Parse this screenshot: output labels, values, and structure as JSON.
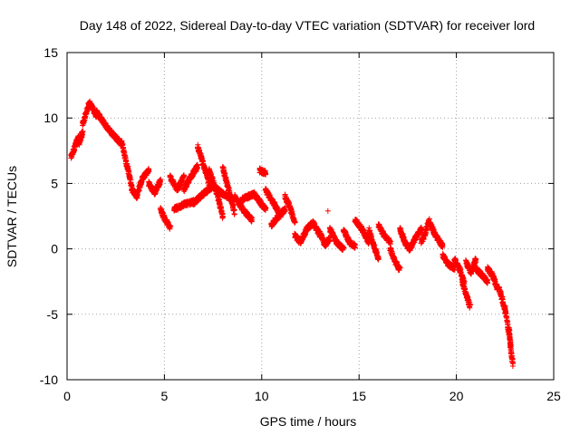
{
  "chart_data": {
    "type": "scatter",
    "title": "Day 148 of 2022, Sidereal Day-to-day VTEC variation (SDTVAR) for receiver lord",
    "xlabel": "GPS time / hours",
    "ylabel": "SDTVAR / TECUs",
    "xlim": [
      0,
      25
    ],
    "ylim": [
      -10,
      15
    ],
    "xticks": [
      0,
      5,
      10,
      15,
      20,
      25
    ],
    "yticks": [
      -10,
      -5,
      0,
      5,
      10,
      15
    ],
    "grid": true,
    "marker": "+",
    "colors": {
      "series": "#ff0000",
      "axis": "#000000",
      "grid": "#a0a0a0"
    },
    "series": [
      {
        "name": "SDTVAR",
        "segments": [
          {
            "x0": 0.2,
            "x1": 0.6,
            "y": [
              7.0,
              8.6
            ]
          },
          {
            "x0": 0.6,
            "x1": 0.8,
            "y": [
              8.0,
              8.9
            ]
          },
          {
            "x0": 0.8,
            "x1": 1.5,
            "y": [
              9.5,
              11.2,
              10.2
            ]
          },
          {
            "x0": 1.5,
            "x1": 2.1,
            "y": [
              10.5,
              9.8,
              9.2
            ]
          },
          {
            "x0": 2.1,
            "x1": 2.8,
            "y": [
              9.2,
              8.0
            ]
          },
          {
            "x0": 2.8,
            "x1": 3.1,
            "y": [
              8.2,
              6.2
            ]
          },
          {
            "x0": 3.1,
            "x1": 3.6,
            "y": [
              6.3,
              4.5,
              4.0
            ]
          },
          {
            "x0": 3.6,
            "x1": 4.2,
            "y": [
              4.2,
              5.5,
              6.0
            ]
          },
          {
            "x0": 4.2,
            "x1": 4.8,
            "y": [
              5.0,
              4.3,
              5.2
            ]
          },
          {
            "x0": 4.8,
            "x1": 5.3,
            "y": [
              3.0,
              2.2,
              1.6
            ]
          },
          {
            "x0": 5.3,
            "x1": 6.0,
            "y": [
              5.5,
              4.5,
              5.5
            ]
          },
          {
            "x0": 6.0,
            "x1": 6.7,
            "y": [
              4.5,
              5.5,
              6.3
            ]
          },
          {
            "x0": 5.5,
            "x1": 6.5,
            "y": [
              3.0,
              3.4,
              3.6
            ]
          },
          {
            "x0": 6.7,
            "x1": 7.3,
            "y": [
              7.8,
              6.5,
              5.0
            ]
          },
          {
            "x0": 6.5,
            "x1": 7.5,
            "y": [
              3.5,
              4.2,
              4.8
            ]
          },
          {
            "x0": 7.3,
            "x1": 8.0,
            "y": [
              6.0,
              4.5,
              2.5
            ]
          },
          {
            "x0": 8.0,
            "x1": 8.6,
            "y": [
              6.2,
              4.5,
              2.8
            ]
          },
          {
            "x0": 7.5,
            "x1": 8.5,
            "y": [
              4.8,
              4.2,
              3.8
            ]
          },
          {
            "x0": 8.6,
            "x1": 9.5,
            "y": [
              4.0,
              3.0,
              2.2
            ]
          },
          {
            "x0": 9.0,
            "x1": 10.2,
            "y": [
              3.8,
              4.2,
              3.0
            ]
          },
          {
            "x0": 9.9,
            "x1": 10.2,
            "y": [
              6.0,
              5.8
            ]
          },
          {
            "x0": 10.2,
            "x1": 11.0,
            "y": [
              4.5,
              3.5,
              2.5
            ]
          },
          {
            "x0": 10.5,
            "x1": 11.2,
            "y": [
              1.8,
              2.5,
              3.0
            ]
          },
          {
            "x0": 11.2,
            "x1": 11.7,
            "y": [
              4.0,
              3.2,
              2.0
            ]
          },
          {
            "x0": 11.7,
            "x1": 12.3,
            "y": [
              1.0,
              0.5,
              1.5
            ]
          },
          {
            "x0": 12.3,
            "x1": 13.0,
            "y": [
              1.5,
              2.0,
              1.0
            ]
          },
          {
            "x0": 13.0,
            "x1": 13.5,
            "y": [
              1.2,
              0.3,
              0.8
            ]
          },
          {
            "x0": 13.5,
            "x1": 14.2,
            "y": [
              1.5,
              0.5,
              0.0
            ]
          },
          {
            "x0": 14.2,
            "x1": 14.8,
            "y": [
              1.5,
              0.5,
              0.2
            ]
          },
          {
            "x0": 14.8,
            "x1": 15.5,
            "y": [
              2.2,
              1.5,
              0.5
            ]
          },
          {
            "x0": 15.5,
            "x1": 16.0,
            "y": [
              1.5,
              0.3,
              -0.8
            ]
          },
          {
            "x0": 16.0,
            "x1": 16.6,
            "y": [
              1.8,
              1.0,
              0.5
            ]
          },
          {
            "x0": 16.6,
            "x1": 17.1,
            "y": [
              0.0,
              -1.0,
              -1.6
            ]
          },
          {
            "x0": 17.1,
            "x1": 17.6,
            "y": [
              1.5,
              0.5,
              0.0
            ]
          },
          {
            "x0": 17.6,
            "x1": 18.2,
            "y": [
              0.0,
              0.8,
              1.5
            ]
          },
          {
            "x0": 18.2,
            "x1": 18.6,
            "y": [
              0.5,
              1.2,
              2.2
            ]
          },
          {
            "x0": 18.6,
            "x1": 19.3,
            "y": [
              2.0,
              1.0,
              0.2
            ]
          },
          {
            "x0": 19.3,
            "x1": 19.9,
            "y": [
              -0.5,
              -1.2,
              -1.5
            ]
          },
          {
            "x0": 19.9,
            "x1": 20.4,
            "y": [
              -0.8,
              -1.5,
              -2.6
            ]
          },
          {
            "x0": 20.3,
            "x1": 20.7,
            "y": [
              -2.5,
              -3.5,
              -4.4
            ]
          },
          {
            "x0": 20.5,
            "x1": 21.0,
            "y": [
              -1.0,
              -1.8,
              -0.8
            ]
          },
          {
            "x0": 21.0,
            "x1": 21.6,
            "y": [
              -1.5,
              -2.0,
              -2.5
            ]
          },
          {
            "x0": 21.6,
            "x1": 22.1,
            "y": [
              -1.5,
              -2.0,
              -3.0
            ]
          },
          {
            "x0": 22.2,
            "x1": 22.5,
            "y": [
              -3.0,
              -3.8,
              -4.8
            ]
          },
          {
            "x0": 22.5,
            "x1": 22.8,
            "y": [
              -4.5,
              -6.0,
              -7.5
            ]
          },
          {
            "x0": 22.7,
            "x1": 22.9,
            "y": [
              -6.0,
              -7.8,
              -8.8
            ]
          }
        ],
        "outliers": [
          {
            "x": 13.4,
            "y": 2.9
          }
        ]
      }
    ]
  }
}
